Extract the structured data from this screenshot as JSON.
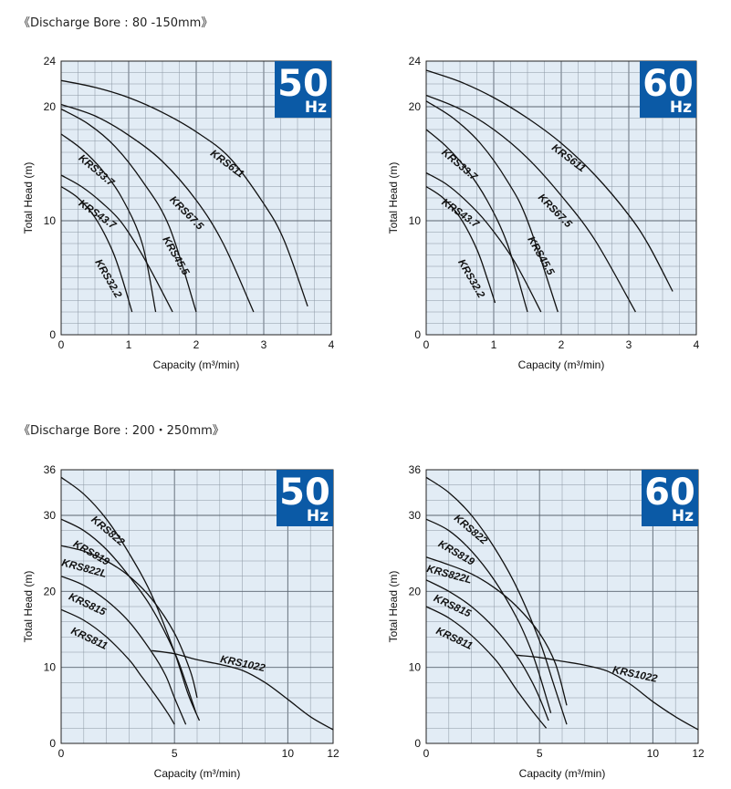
{
  "sections": [
    {
      "title": "《Discharge Bore : 80 -150mm》"
    },
    {
      "title": "《Discharge Bore : 200・250mm》"
    }
  ],
  "chart_data": [
    {
      "type": "line",
      "badge": {
        "number": "50",
        "unit": "Hz"
      },
      "xlabel": "Capacity (m³/min)",
      "ylabel": "Total Head (m)",
      "xlim": [
        0,
        4
      ],
      "ylim": [
        0,
        24
      ],
      "xticks": [
        "0",
        "1",
        "2",
        "3",
        "4"
      ],
      "yticks": [
        "0",
        "10",
        "20",
        "24"
      ],
      "grid": true,
      "series": [
        {
          "name": "KRS611",
          "x": [
            0,
            0.5,
            1,
            1.5,
            2,
            2.5,
            3,
            3.3,
            3.65
          ],
          "y": [
            22.3,
            21.7,
            20.8,
            19.5,
            17.8,
            15.5,
            11.5,
            8.3,
            2.5
          ]
        },
        {
          "name": "KRS67.5",
          "x": [
            0,
            0.5,
            1,
            1.5,
            2,
            2.4,
            2.85
          ],
          "y": [
            20.2,
            19.2,
            17.5,
            15.2,
            11.8,
            8,
            2
          ]
        },
        {
          "name": "KRS45.5",
          "x": [
            0,
            0.4,
            0.8,
            1.2,
            1.6,
            2
          ],
          "y": [
            19.8,
            18.5,
            16.5,
            13.5,
            9.5,
            2
          ]
        },
        {
          "name": "KRS33.7",
          "x": [
            0,
            0.3,
            0.6,
            0.9,
            1.2,
            1.4
          ],
          "y": [
            17.6,
            16.3,
            14.5,
            12,
            8,
            2
          ]
        },
        {
          "name": "KRS43.7",
          "x": [
            0,
            0.3,
            0.6,
            0.9,
            1.25,
            1.65
          ],
          "y": [
            14,
            13,
            11.6,
            9.8,
            6.5,
            2
          ]
        },
        {
          "name": "KRS32.2",
          "x": [
            0,
            0.25,
            0.5,
            0.75,
            0.9,
            1.05
          ],
          "y": [
            13,
            12,
            10.3,
            7.5,
            5,
            2
          ]
        }
      ],
      "labels": [
        {
          "text": "KRS611",
          "x": 2.2,
          "y": 15.8,
          "angle": 37
        },
        {
          "text": "KRS67.5",
          "x": 1.6,
          "y": 11.8,
          "angle": 45
        },
        {
          "text": "KRS45.5",
          "x": 1.5,
          "y": 8.4,
          "angle": 60
        },
        {
          "text": "KRS33.7",
          "x": 0.25,
          "y": 15.4,
          "angle": 40
        },
        {
          "text": "KRS43.7",
          "x": 0.25,
          "y": 11.4,
          "angle": 35
        },
        {
          "text": "KRS32.2",
          "x": 0.5,
          "y": 6.4,
          "angle": 60
        }
      ]
    },
    {
      "type": "line",
      "badge": {
        "number": "60",
        "unit": "Hz"
      },
      "xlabel": "Capacity (m³/min)",
      "ylabel": "Total Head (m)",
      "xlim": [
        0,
        4
      ],
      "ylim": [
        0,
        24
      ],
      "xticks": [
        "0",
        "1",
        "2",
        "3",
        "4"
      ],
      "yticks": [
        "0",
        "10",
        "20",
        "24"
      ],
      "grid": true,
      "series": [
        {
          "name": "KRS611",
          "x": [
            0,
            0.5,
            1,
            1.5,
            2,
            2.5,
            3,
            3.3,
            3.65
          ],
          "y": [
            23.2,
            22.2,
            20.8,
            19,
            16.8,
            14,
            10.5,
            7.8,
            3.8
          ]
        },
        {
          "name": "KRS67.5",
          "x": [
            0,
            0.5,
            1,
            1.5,
            2,
            2.5,
            3.1
          ],
          "y": [
            21,
            19.8,
            18,
            15.5,
            12.2,
            8.3,
            2
          ]
        },
        {
          "name": "KRS45.5",
          "x": [
            0,
            0.4,
            0.8,
            1.2,
            1.5,
            1.95
          ],
          "y": [
            20.5,
            19,
            16.8,
            13.5,
            10,
            2
          ]
        },
        {
          "name": "KRS33.7",
          "x": [
            0,
            0.3,
            0.6,
            0.9,
            1.2,
            1.5
          ],
          "y": [
            18,
            16.5,
            14.5,
            11.8,
            8,
            2
          ]
        },
        {
          "name": "KRS43.7",
          "x": [
            0,
            0.3,
            0.6,
            0.9,
            1.3,
            1.7
          ],
          "y": [
            14.2,
            13.2,
            11.7,
            9.8,
            6.5,
            2
          ]
        },
        {
          "name": "KRS32.2",
          "x": [
            0,
            0.25,
            0.5,
            0.75,
            0.9,
            1.02
          ],
          "y": [
            13,
            12,
            10.3,
            7.5,
            5,
            2.8
          ]
        }
      ],
      "labels": [
        {
          "text": "KRS611",
          "x": 1.85,
          "y": 16.3,
          "angle": 37
        },
        {
          "text": "KRS67.5",
          "x": 1.65,
          "y": 12,
          "angle": 45
        },
        {
          "text": "KRS45.5",
          "x": 1.5,
          "y": 8.4,
          "angle": 60
        },
        {
          "text": "KRS33.7",
          "x": 0.22,
          "y": 15.9,
          "angle": 40
        },
        {
          "text": "KRS43.7",
          "x": 0.22,
          "y": 11.5,
          "angle": 35
        },
        {
          "text": "KRS32.2",
          "x": 0.47,
          "y": 6.4,
          "angle": 60
        }
      ]
    },
    {
      "type": "line",
      "badge": {
        "number": "50",
        "unit": "Hz"
      },
      "xlabel": "Capacity (m³/min)",
      "ylabel": "Total Head (m)",
      "xlim": [
        0,
        12
      ],
      "ylim": [
        0,
        36
      ],
      "xticks": [
        "0",
        "5",
        "10",
        "12"
      ],
      "yticks": [
        "0",
        "10",
        "20",
        "30",
        "36"
      ],
      "grid": true,
      "series": [
        {
          "name": "KRS822",
          "x": [
            0,
            1,
            2,
            3,
            4,
            5,
            5.6,
            6.1
          ],
          "y": [
            35,
            32.8,
            29.5,
            25,
            19.5,
            12,
            6.5,
            3
          ]
        },
        {
          "name": "KRS819",
          "x": [
            0,
            1,
            2,
            3,
            4,
            5,
            5.5,
            5.95
          ],
          "y": [
            29.5,
            28,
            25.5,
            22,
            17.8,
            12,
            8,
            4
          ]
        },
        {
          "name": "KRS822L",
          "x": [
            0,
            1,
            2,
            3,
            4,
            5,
            5.7,
            6
          ],
          "y": [
            26,
            25.3,
            24,
            22,
            19,
            14.5,
            9.5,
            6
          ]
        },
        {
          "name": "KRS815",
          "x": [
            0,
            1,
            2,
            3,
            4,
            4.6,
            5,
            5.5
          ],
          "y": [
            22,
            20.8,
            18.8,
            16,
            12,
            9,
            6,
            2.5
          ]
        },
        {
          "name": "KRS811",
          "x": [
            0,
            1,
            2,
            3,
            3.5,
            4,
            4.7,
            5
          ],
          "y": [
            17.6,
            16.2,
            14,
            11,
            9,
            7,
            4,
            2.5
          ]
        },
        {
          "name": "KRS1022",
          "x": [
            4,
            5,
            6,
            7,
            8,
            9,
            10,
            11,
            12
          ],
          "y": [
            12.2,
            11.8,
            11,
            10.4,
            9.6,
            8,
            5.8,
            3.5,
            1.8
          ]
        }
      ],
      "labels": [
        {
          "text": "KRS822",
          "x": 1.3,
          "y": 29.3,
          "angle": 40
        },
        {
          "text": "KRS819",
          "x": 0.5,
          "y": 26,
          "angle": 30
        },
        {
          "text": "KRS822L",
          "x": 0,
          "y": 23.4,
          "angle": 15
        },
        {
          "text": "KRS815",
          "x": 0.3,
          "y": 19,
          "angle": 25
        },
        {
          "text": "KRS811",
          "x": 0.4,
          "y": 14.5,
          "angle": 25
        },
        {
          "text": "KRS1022",
          "x": 7,
          "y": 10.7,
          "angle": 12
        }
      ]
    },
    {
      "type": "line",
      "badge": {
        "number": "60",
        "unit": "Hz"
      },
      "xlabel": "Capacity (m³/min)",
      "ylabel": "Total Head (m)",
      "xlim": [
        0,
        12
      ],
      "ylim": [
        0,
        36
      ],
      "xticks": [
        "0",
        "5",
        "10",
        "12"
      ],
      "yticks": [
        "0",
        "10",
        "20",
        "30",
        "36"
      ],
      "grid": true,
      "series": [
        {
          "name": "KRS822",
          "x": [
            0,
            1,
            2,
            3,
            4,
            5,
            5.6,
            6.2
          ],
          "y": [
            35,
            33,
            30,
            25.8,
            20.5,
            13.5,
            8,
            2.5
          ]
        },
        {
          "name": "KRS819",
          "x": [
            0,
            1,
            2,
            3,
            4,
            4.6,
            5,
            5.5
          ],
          "y": [
            29.5,
            28,
            25.3,
            21.5,
            16.5,
            12.5,
            9,
            4
          ]
        },
        {
          "name": "KRS822L",
          "x": [
            0,
            1,
            2,
            3,
            4,
            5,
            5.7,
            6.2
          ],
          "y": [
            24.5,
            23.5,
            22.3,
            20.5,
            18,
            14.5,
            10.5,
            5
          ]
        },
        {
          "name": "KRS815",
          "x": [
            0,
            1,
            2,
            3,
            4,
            4.6,
            5,
            5.4
          ],
          "y": [
            21.5,
            20,
            18,
            15.2,
            11.5,
            8.5,
            6,
            3
          ]
        },
        {
          "name": "KRS811",
          "x": [
            0,
            1,
            2,
            3,
            3.5,
            4,
            4.7,
            5.3
          ],
          "y": [
            18,
            16.5,
            14.2,
            11.2,
            9.2,
            7,
            4.2,
            2
          ]
        },
        {
          "name": "KRS1022",
          "x": [
            4,
            5,
            6,
            7,
            8,
            9,
            10,
            11,
            12
          ],
          "y": [
            11.6,
            11.3,
            10.8,
            10.3,
            9.5,
            7.8,
            5.5,
            3.5,
            1.8
          ]
        }
      ],
      "labels": [
        {
          "text": "KRS822",
          "x": 1.2,
          "y": 29.5,
          "angle": 40
        },
        {
          "text": "KRS819",
          "x": 0.5,
          "y": 26,
          "angle": 30
        },
        {
          "text": "KRS822L",
          "x": 0,
          "y": 22.6,
          "angle": 15
        },
        {
          "text": "KRS815",
          "x": 0.3,
          "y": 18.8,
          "angle": 25
        },
        {
          "text": "KRS811",
          "x": 0.4,
          "y": 14.5,
          "angle": 25
        },
        {
          "text": "KRS1022",
          "x": 8.2,
          "y": 9.3,
          "angle": 12
        }
      ]
    }
  ]
}
